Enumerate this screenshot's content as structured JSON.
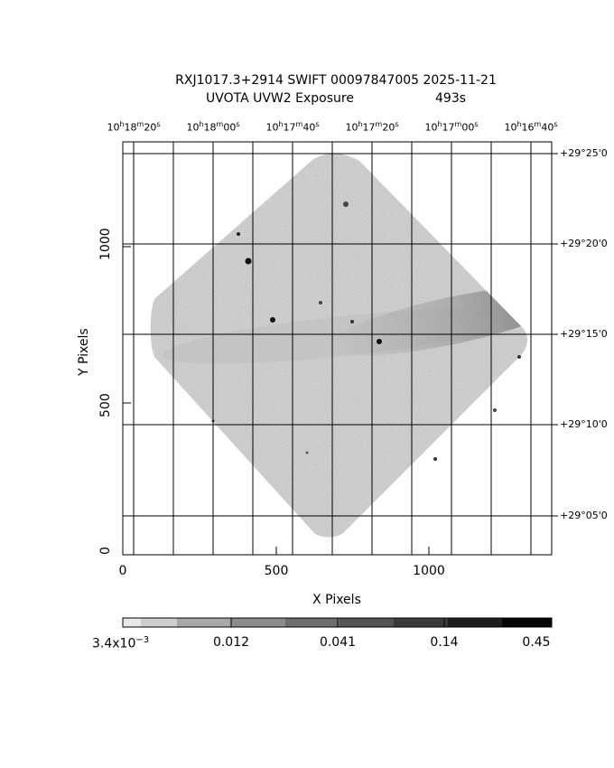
{
  "title": {
    "line1": "RXJ1017.3+2914 SWIFT 00097847005 2025-11-21",
    "line2_left": "UVOTA UVW2 Exposure",
    "line2_right": "493s"
  },
  "axes": {
    "xlabel": "X Pixels",
    "ylabel": "Y Pixels",
    "x_ticks": [
      "0",
      "500",
      "1000"
    ],
    "y_ticks": [
      "0",
      "500",
      "1000"
    ]
  },
  "ra_labels": [
    {
      "h": "10",
      "hu": "h",
      "m": "18",
      "mu": "m",
      "s": "20",
      "su": "s"
    },
    {
      "h": "10",
      "hu": "h",
      "m": "18",
      "mu": "m",
      "s": "00",
      "su": "s"
    },
    {
      "h": "10",
      "hu": "h",
      "m": "17",
      "mu": "m",
      "s": "40",
      "su": "s"
    },
    {
      "h": "10",
      "hu": "h",
      "m": "17",
      "mu": "m",
      "s": "20",
      "su": "s"
    },
    {
      "h": "10",
      "hu": "h",
      "m": "17",
      "mu": "m",
      "s": "00",
      "su": "s"
    },
    {
      "h": "10",
      "hu": "h",
      "m": "16",
      "mu": "m",
      "s": "40",
      "su": "s"
    }
  ],
  "dec_labels": [
    "+29°25'0",
    "+29°20'0",
    "+29°15'0",
    "+29°10'0",
    "+29°05'0"
  ],
  "colorbar": {
    "labels": [
      "3.4x10",
      "0.012",
      "0.041",
      "0.14",
      "0.45"
    ],
    "first_exponent": "−3",
    "scale": "log"
  },
  "colors": {
    "background": "#ffffff",
    "frame": "#000000",
    "image_low": "#c8c8c8",
    "image_high": "#000000"
  }
}
